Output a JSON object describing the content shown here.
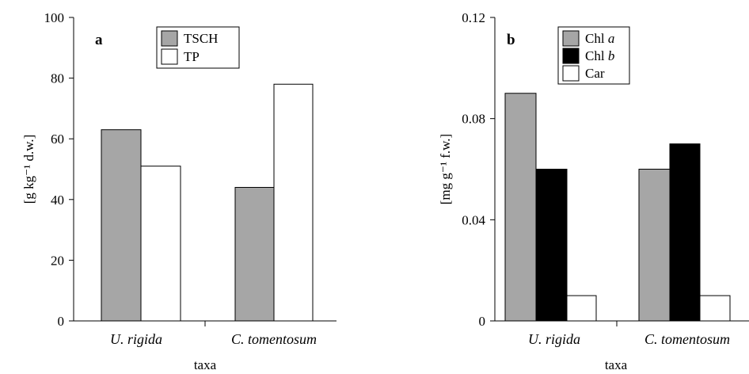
{
  "chart_data": [
    {
      "type": "bar",
      "panel_label": "a",
      "categories": [
        "U. rigida",
        "C. tomentosum"
      ],
      "series": [
        {
          "name": "TSCH",
          "values": [
            63,
            44
          ],
          "color": "#a6a6a6"
        },
        {
          "name": "TP",
          "values": [
            51,
            78
          ],
          "color": "#ffffff"
        }
      ],
      "xlabel": "taxa",
      "ylabel": "[g kg⁻¹ d.w.]",
      "ylim": [
        0,
        100
      ],
      "yticks": [
        "0",
        "20",
        "40",
        "60",
        "80",
        "100"
      ],
      "grid": false,
      "legend_position": "top-center"
    },
    {
      "type": "bar",
      "panel_label": "b",
      "categories": [
        "U. rigida",
        "C. tomentosum"
      ],
      "series": [
        {
          "name": "Chl a",
          "name_main": "Chl ",
          "name_ital": "a",
          "values": [
            0.09,
            0.06
          ],
          "color": "#a6a6a6"
        },
        {
          "name": "Chl b",
          "name_main": "Chl ",
          "name_ital": "b",
          "values": [
            0.06,
            0.07
          ],
          "color": "#000000"
        },
        {
          "name": "Car",
          "name_main": "Car",
          "name_ital": "",
          "values": [
            0.01,
            0.01
          ],
          "color": "#ffffff"
        }
      ],
      "xlabel": "taxa",
      "ylabel": "[mg g⁻¹ f.w.]",
      "ylim": [
        0,
        0.12
      ],
      "yticks": [
        "0",
        "0.04",
        "0.08",
        "0.12"
      ],
      "grid": false,
      "legend_position": "top-left"
    }
  ]
}
